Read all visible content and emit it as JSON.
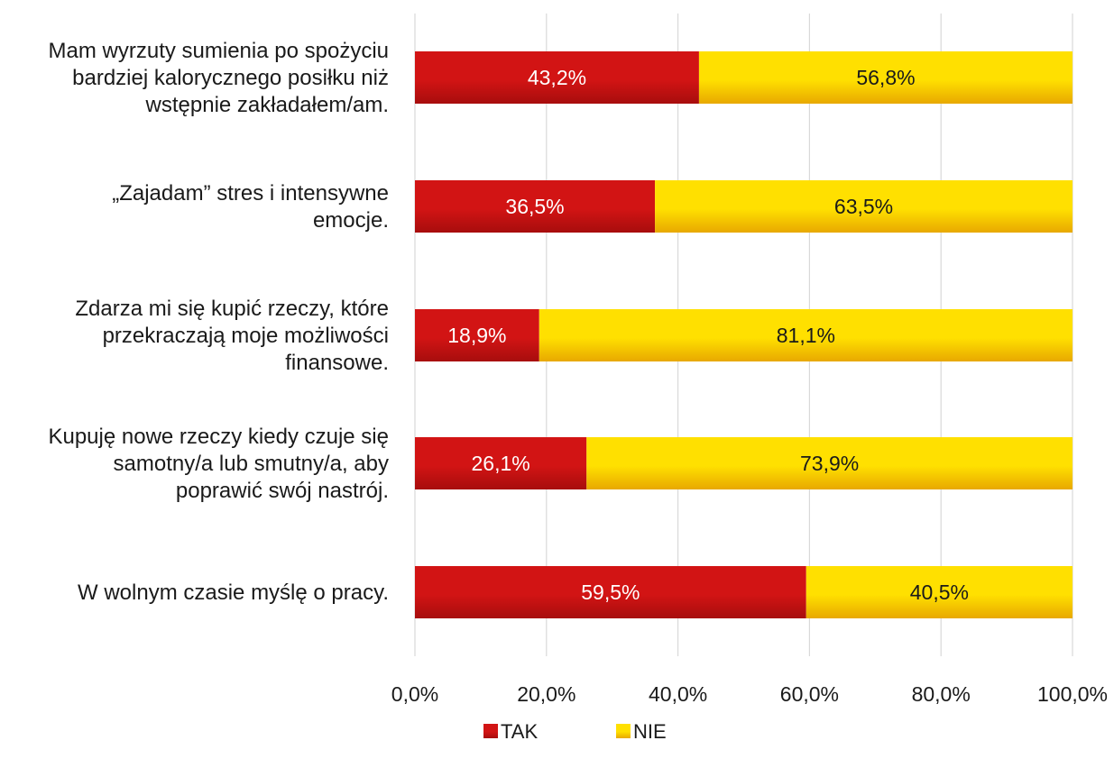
{
  "chart_data": {
    "type": "bar",
    "orientation": "horizontal",
    "stacked": true,
    "categories": [
      [
        "Mam wyrzuty sumienia po spożyciu",
        "bardziej kalorycznego posiłku niż",
        "wstępnie zakładałem/am."
      ],
      [
        "„Zajadam” stres i intensywne",
        "emocje."
      ],
      [
        "Zdarza mi się kupić rzeczy, które",
        "przekraczają moje możliwości",
        "finansowe."
      ],
      [
        "Kupuję nowe rzeczy kiedy czuje się",
        "samotny/a lub smutny/a, aby",
        "poprawić swój nastrój."
      ],
      [
        "W wolnym czasie myślę o pracy."
      ]
    ],
    "series": [
      {
        "name": "TAK",
        "values": [
          43.2,
          36.5,
          18.9,
          26.1,
          59.5
        ],
        "labels": [
          "43,2%",
          "36,5%",
          "18,9%",
          "26,1%",
          "59,5%"
        ],
        "color": "#d21414",
        "color_dark": "#a70d0d",
        "label_color": "#ffffff"
      },
      {
        "name": "NIE",
        "values": [
          56.8,
          63.5,
          81.1,
          73.9,
          40.5
        ],
        "labels": [
          "56,8%",
          "63,5%",
          "81,1%",
          "73,9%",
          "40,5%"
        ],
        "color": "#ffe000",
        "color_dark": "#e8a800",
        "label_color": "#1a1a1a"
      }
    ],
    "xlim": [
      0,
      100
    ],
    "xticks": [
      0,
      20,
      40,
      60,
      80,
      100
    ],
    "xtick_labels": [
      "0,0%",
      "20,0%",
      "40,0%",
      "60,0%",
      "80,0%",
      "100,0%"
    ],
    "grid": true,
    "legend_position": "bottom"
  }
}
